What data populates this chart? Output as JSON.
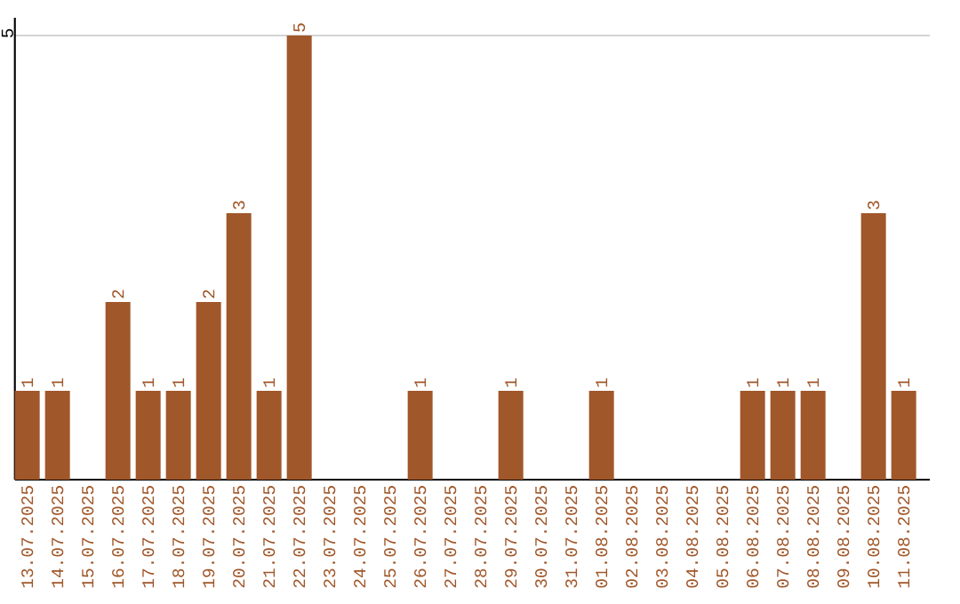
{
  "chart_data": {
    "type": "bar",
    "categories": [
      "13.07.2025",
      "14.07.2025",
      "15.07.2025",
      "16.07.2025",
      "17.07.2025",
      "18.07.2025",
      "19.07.2025",
      "20.07.2025",
      "21.07.2025",
      "22.07.2025",
      "23.07.2025",
      "24.07.2025",
      "25.07.2025",
      "26.07.2025",
      "27.07.2025",
      "28.07.2025",
      "29.07.2025",
      "30.07.2025",
      "31.07.2025",
      "01.08.2025",
      "02.08.2025",
      "03.08.2025",
      "04.08.2025",
      "05.08.2025",
      "06.08.2025",
      "07.08.2025",
      "08.08.2025",
      "09.08.2025",
      "10.08.2025",
      "11.08.2025"
    ],
    "values": [
      1,
      1,
      0,
      2,
      1,
      1,
      2,
      3,
      1,
      5,
      0,
      0,
      0,
      1,
      0,
      0,
      1,
      0,
      0,
      1,
      0,
      0,
      0,
      0,
      1,
      1,
      1,
      0,
      3,
      1
    ],
    "value_labels": [
      "1",
      "1",
      null,
      "2",
      "1",
      "1",
      "2",
      "3",
      "1",
      "5",
      null,
      null,
      null,
      "1",
      null,
      null,
      "1",
      null,
      null,
      "1",
      null,
      null,
      null,
      null,
      "1",
      "1",
      "1",
      null,
      "3",
      "1"
    ],
    "color": "#a0572a",
    "ylim": [
      0,
      5.2
    ],
    "yticks": [
      5
    ],
    "grid": "y"
  }
}
